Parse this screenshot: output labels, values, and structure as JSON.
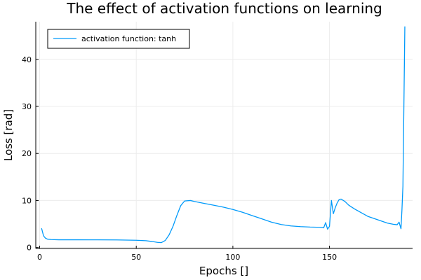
{
  "chart_data": {
    "type": "line",
    "title": "The effect of activation functions on learning",
    "xlabel": "Epochs []",
    "ylabel": "Loss [rad]",
    "xlim": [
      -2,
      193
    ],
    "ylim": [
      -0.2,
      48
    ],
    "xticks": [
      0,
      50,
      100,
      150
    ],
    "yticks": [
      0,
      10,
      20,
      30,
      40
    ],
    "grid": true,
    "legend_position": "top-left",
    "series": [
      {
        "name": "activation function: tanh",
        "color": "#009AFA",
        "points": [
          [
            1,
            4.1
          ],
          [
            2,
            2.5
          ],
          [
            3,
            2.0
          ],
          [
            4,
            1.8
          ],
          [
            6,
            1.7
          ],
          [
            10,
            1.65
          ],
          [
            20,
            1.65
          ],
          [
            30,
            1.64
          ],
          [
            40,
            1.62
          ],
          [
            50,
            1.55
          ],
          [
            55,
            1.45
          ],
          [
            58,
            1.3
          ],
          [
            61,
            1.1
          ],
          [
            63,
            1.05
          ],
          [
            65,
            1.5
          ],
          [
            67,
            2.7
          ],
          [
            69,
            4.5
          ],
          [
            71,
            6.8
          ],
          [
            73,
            8.9
          ],
          [
            75,
            9.9
          ],
          [
            78,
            10.0
          ],
          [
            80,
            9.8
          ],
          [
            85,
            9.4
          ],
          [
            90,
            9.0
          ],
          [
            95,
            8.6
          ],
          [
            100,
            8.1
          ],
          [
            105,
            7.5
          ],
          [
            110,
            6.8
          ],
          [
            115,
            6.1
          ],
          [
            120,
            5.4
          ],
          [
            125,
            4.9
          ],
          [
            130,
            4.6
          ],
          [
            135,
            4.45
          ],
          [
            140,
            4.35
          ],
          [
            145,
            4.3
          ],
          [
            147,
            4.2
          ],
          [
            148,
            5.3
          ],
          [
            149,
            3.9
          ],
          [
            150,
            4.5
          ],
          [
            151,
            10.0
          ],
          [
            152,
            7.2
          ],
          [
            153,
            8.5
          ],
          [
            154,
            9.5
          ],
          [
            155,
            10.2
          ],
          [
            156,
            10.3
          ],
          [
            158,
            9.8
          ],
          [
            160,
            9.0
          ],
          [
            163,
            8.2
          ],
          [
            166,
            7.5
          ],
          [
            170,
            6.6
          ],
          [
            175,
            5.9
          ],
          [
            180,
            5.2
          ],
          [
            183,
            4.95
          ],
          [
            185,
            4.85
          ],
          [
            186,
            5.4
          ],
          [
            187,
            4.0
          ],
          [
            187.5,
            8.0
          ],
          [
            188,
            13.0
          ],
          [
            188.5,
            30.0
          ],
          [
            189,
            47.0
          ]
        ]
      }
    ]
  }
}
